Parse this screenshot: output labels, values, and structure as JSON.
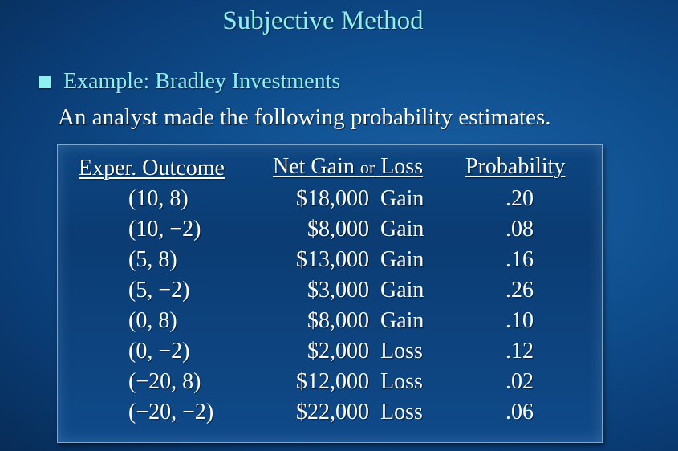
{
  "title": "Subjective Method",
  "bullet": "Example:  Bradley Investments",
  "subtitle": "An analyst made the following probability estimates.",
  "table": {
    "headers": {
      "outcome": "Exper.  Outcome",
      "net_gain_a": "Net Gain",
      "net_gain_or": "or",
      "net_gain_b": "Loss",
      "probability": "Probability"
    },
    "rows": [
      {
        "outcome": "(10,  8)",
        "amount": "$18,000",
        "kind": "Gain",
        "probability": ".20"
      },
      {
        "outcome": "(10, −2)",
        "amount": "$8,000",
        "kind": "Gain",
        "probability": ".08"
      },
      {
        "outcome": "(5,  8)",
        "amount": "$13,000",
        "kind": "Gain",
        "probability": ".16"
      },
      {
        "outcome": "(5, −2)",
        "amount": "$3,000",
        "kind": "Gain",
        "probability": ".26"
      },
      {
        "outcome": "(0,  8)",
        "amount": "$8,000",
        "kind": "Gain",
        "probability": ".10"
      },
      {
        "outcome": "(0, −2)",
        "amount": "$2,000",
        "kind": "Loss",
        "probability": ".12"
      },
      {
        "outcome": "(−20,  8)",
        "amount": "$12,000",
        "kind": "Loss",
        "probability": ".02"
      },
      {
        "outcome": "(−20, −2)",
        "amount": "$22,000",
        "kind": "Loss",
        "probability": ".06"
      }
    ]
  },
  "colors": {
    "accent": "#8ff0f0",
    "text": "#ffffff",
    "background": "#0f4f8f"
  }
}
